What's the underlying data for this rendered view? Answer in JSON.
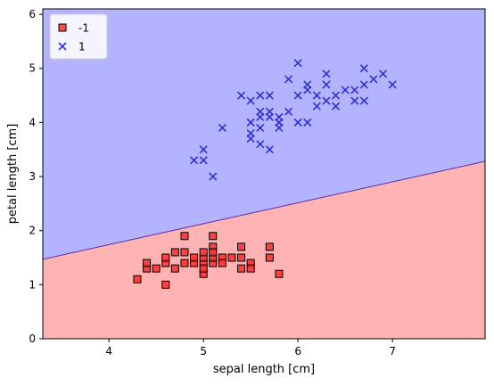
{
  "chart_data": {
    "type": "scatter",
    "title": "",
    "xlabel": "sepal length [cm]",
    "ylabel": "petal length [cm]",
    "xlim": [
      3.3,
      7.98
    ],
    "ylim": [
      0,
      6.1
    ],
    "xticks": [
      4,
      5,
      6,
      7
    ],
    "yticks": [
      0,
      1,
      2,
      3,
      4,
      5,
      6
    ],
    "grid": false,
    "legend_position": "top-left",
    "decision_boundary": {
      "line": [
        [
          3.3,
          1.47
        ],
        [
          7.98,
          3.28
        ]
      ],
      "regions": [
        {
          "label": "-1",
          "side": "below",
          "color": "#ffb3b3"
        },
        {
          "label": "1",
          "side": "above",
          "color": "#b3b3ff"
        }
      ],
      "line_color": "#5a2d9c"
    },
    "series": [
      {
        "name": "-1",
        "marker": "square",
        "color": "#ff2b2b",
        "edge_color": "#000000",
        "points": [
          [
            4.3,
            1.1
          ],
          [
            4.4,
            1.3
          ],
          [
            4.4,
            1.4
          ],
          [
            4.5,
            1.3
          ],
          [
            4.6,
            1.4
          ],
          [
            4.6,
            1.5
          ],
          [
            4.6,
            1.0
          ],
          [
            4.7,
            1.3
          ],
          [
            4.7,
            1.6
          ],
          [
            4.8,
            1.4
          ],
          [
            4.8,
            1.6
          ],
          [
            4.8,
            1.9
          ],
          [
            4.9,
            1.4
          ],
          [
            4.9,
            1.5
          ],
          [
            5.0,
            1.4
          ],
          [
            5.0,
            1.5
          ],
          [
            5.0,
            1.6
          ],
          [
            5.0,
            1.2
          ],
          [
            5.0,
            1.3
          ],
          [
            5.1,
            1.4
          ],
          [
            5.1,
            1.5
          ],
          [
            5.1,
            1.7
          ],
          [
            5.1,
            1.9
          ],
          [
            5.1,
            1.6
          ],
          [
            5.2,
            1.5
          ],
          [
            5.2,
            1.4
          ],
          [
            5.3,
            1.5
          ],
          [
            5.4,
            1.3
          ],
          [
            5.4,
            1.5
          ],
          [
            5.4,
            1.7
          ],
          [
            5.5,
            1.4
          ],
          [
            5.5,
            1.3
          ],
          [
            5.7,
            1.5
          ],
          [
            5.7,
            1.7
          ],
          [
            5.8,
            1.2
          ]
        ]
      },
      {
        "name": "1",
        "marker": "x",
        "color": "#2a2ad6",
        "points": [
          [
            4.9,
            3.3
          ],
          [
            5.0,
            3.3
          ],
          [
            5.0,
            3.5
          ],
          [
            5.1,
            3.0
          ],
          [
            5.2,
            3.9
          ],
          [
            5.4,
            4.5
          ],
          [
            5.5,
            4.0
          ],
          [
            5.5,
            3.8
          ],
          [
            5.5,
            3.7
          ],
          [
            5.5,
            4.4
          ],
          [
            5.6,
            3.6
          ],
          [
            5.6,
            3.9
          ],
          [
            5.6,
            4.1
          ],
          [
            5.6,
            4.2
          ],
          [
            5.6,
            4.5
          ],
          [
            5.7,
            3.5
          ],
          [
            5.7,
            4.1
          ],
          [
            5.7,
            4.2
          ],
          [
            5.7,
            4.5
          ],
          [
            5.8,
            3.9
          ],
          [
            5.8,
            4.0
          ],
          [
            5.8,
            4.1
          ],
          [
            5.9,
            4.2
          ],
          [
            5.9,
            4.8
          ],
          [
            6.0,
            4.0
          ],
          [
            6.0,
            4.5
          ],
          [
            6.0,
            5.1
          ],
          [
            6.1,
            4.0
          ],
          [
            6.1,
            4.6
          ],
          [
            6.1,
            4.7
          ],
          [
            6.2,
            4.3
          ],
          [
            6.2,
            4.5
          ],
          [
            6.3,
            4.4
          ],
          [
            6.3,
            4.7
          ],
          [
            6.3,
            4.9
          ],
          [
            6.4,
            4.3
          ],
          [
            6.4,
            4.5
          ],
          [
            6.5,
            4.6
          ],
          [
            6.6,
            4.4
          ],
          [
            6.6,
            4.6
          ],
          [
            6.7,
            4.4
          ],
          [
            6.7,
            4.7
          ],
          [
            6.7,
            5.0
          ],
          [
            6.8,
            4.8
          ],
          [
            6.9,
            4.9
          ],
          [
            7.0,
            4.7
          ]
        ]
      }
    ]
  }
}
